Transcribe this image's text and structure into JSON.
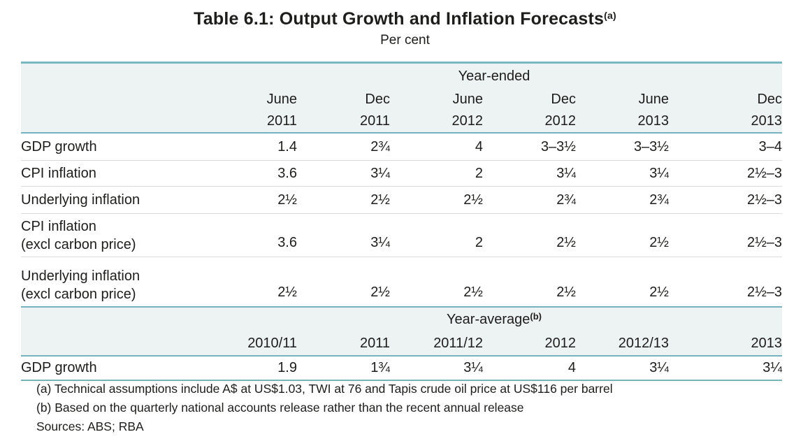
{
  "page": {
    "title": "Table 6.1: Output Growth and Inflation Forecasts",
    "title_marker": "(a)",
    "subtitle": "Per cent"
  },
  "year_ended": {
    "section_label": "Year-ended",
    "col_months": [
      "June",
      "Dec",
      "June",
      "Dec",
      "June",
      "Dec"
    ],
    "col_years": [
      "2011",
      "2011",
      "2012",
      "2012",
      "2013",
      "2013"
    ],
    "rows": [
      {
        "label": "GDP growth",
        "values": [
          "1.4",
          "2¾",
          "4",
          "3–3½",
          "3–3½",
          "3–4"
        ]
      },
      {
        "label": "CPI inflation",
        "values": [
          "3.6",
          "3¼",
          "2",
          "3¼",
          "3¼",
          "2½–3"
        ]
      },
      {
        "label": "Underlying inflation",
        "values": [
          "2½",
          "2½",
          "2½",
          "2¾",
          "2¾",
          "2½–3"
        ]
      },
      {
        "label": "CPI inflation",
        "label2": "(excl carbon price)",
        "values": [
          "3.6",
          "3¼",
          "2",
          "2½",
          "2½",
          "2½–3"
        ]
      },
      {
        "label": "Underlying inflation",
        "label2": "(excl carbon price)",
        "values": [
          "2½",
          "2½",
          "2½",
          "2½",
          "2½",
          "2½–3"
        ]
      }
    ]
  },
  "year_average": {
    "section_label": "Year-average",
    "section_marker": "(b)",
    "col_years": [
      "2010/11",
      "2011",
      "2011/12",
      "2012",
      "2012/13",
      "2013"
    ],
    "rows": [
      {
        "label": "GDP growth",
        "values": [
          "1.9",
          "1¾",
          "3¼",
          "4",
          "3¼",
          "3¼"
        ]
      }
    ]
  },
  "footnotes": [
    "(a) Technical assumptions include A$ at US$1.03, TWI at 76 and Tapis crude oil price at US$116 per barrel",
    "(b) Based on the quarterly national accounts release rather than the recent annual release",
    "Sources: ABS; RBA"
  ],
  "colors": {
    "accent_teal": "#76b2bf",
    "header_background": "#edf2f3",
    "row_separator": "#d9dcdd",
    "text": "#1d1d1b"
  }
}
